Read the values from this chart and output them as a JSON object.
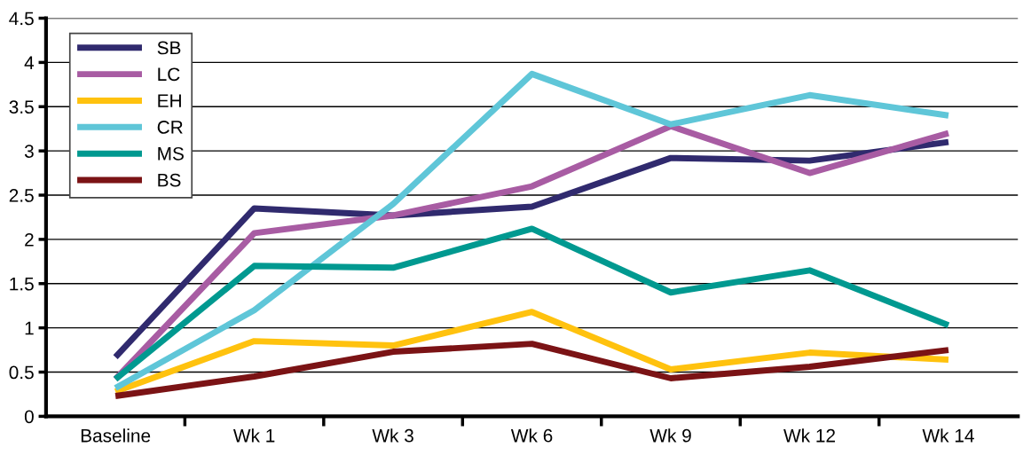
{
  "chart_data": {
    "type": "line",
    "categories": [
      "Baseline",
      "Wk 1",
      "Wk 3",
      "Wk 6",
      "Wk 9",
      "Wk 12",
      "Wk 14"
    ],
    "series": [
      {
        "name": "SB",
        "color": "#302a6e",
        "values": [
          0.67,
          2.35,
          2.27,
          2.37,
          2.92,
          2.89,
          3.1
        ]
      },
      {
        "name": "LC",
        "color": "#a85ca3",
        "values": [
          0.42,
          2.07,
          2.27,
          2.6,
          3.28,
          2.75,
          3.2
        ]
      },
      {
        "name": "EH",
        "color": "#ffc20e",
        "values": [
          0.28,
          0.85,
          0.8,
          1.18,
          0.53,
          0.72,
          0.64
        ]
      },
      {
        "name": "CR",
        "color": "#5fc6d8",
        "values": [
          0.32,
          1.2,
          2.4,
          3.87,
          3.3,
          3.63,
          3.4
        ]
      },
      {
        "name": "MS",
        "color": "#009990",
        "values": [
          0.42,
          1.7,
          1.68,
          2.12,
          1.4,
          1.65,
          1.03
        ]
      },
      {
        "name": "BS",
        "color": "#7b1315",
        "values": [
          0.23,
          0.45,
          0.73,
          0.82,
          0.43,
          0.56,
          0.75
        ]
      }
    ],
    "ylim": [
      0,
      4.5
    ],
    "yticks": [
      0,
      0.5,
      1,
      1.5,
      2,
      2.5,
      3,
      3.5,
      4,
      4.5
    ],
    "grid": "y",
    "legend": "top left",
    "marker": "none",
    "line_style": "solid"
  }
}
